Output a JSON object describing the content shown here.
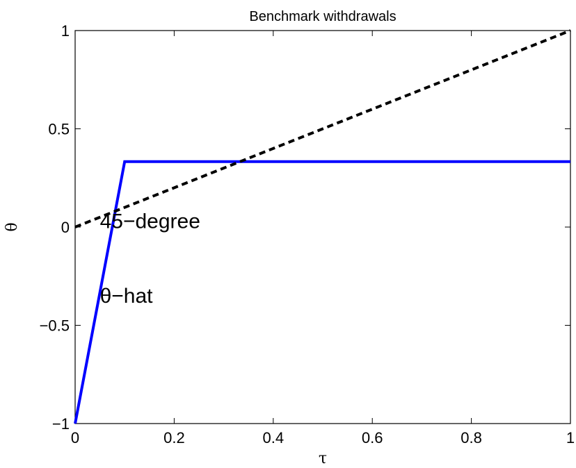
{
  "chart_data": {
    "type": "line",
    "title": "Benchmark withdrawals",
    "xlabel": "τ",
    "ylabel": "θ",
    "xlim": [
      0,
      1
    ],
    "ylim": [
      -1,
      1
    ],
    "x_ticks": [
      0,
      0.2,
      0.4,
      0.6,
      0.8,
      1
    ],
    "x_tick_labels": [
      "0",
      "0.2",
      "0.4",
      "0.6",
      "0.8",
      "1"
    ],
    "y_ticks": [
      -1,
      -0.5,
      0,
      0.5,
      1
    ],
    "y_tick_labels": [
      "−1",
      "−0.5",
      "0",
      "0.5",
      "1"
    ],
    "grid": false,
    "legend": "none",
    "series": [
      {
        "key": "theta_hat",
        "color": "#0000ff",
        "style": "solid",
        "x": [
          0,
          0.1,
          1
        ],
        "y": [
          -1,
          0.333,
          0.333
        ]
      },
      {
        "key": "forty_five",
        "color": "#000000",
        "style": "dashed",
        "x": [
          0,
          1
        ],
        "y": [
          0,
          1
        ]
      }
    ],
    "annotations": [
      {
        "text": "45−degree",
        "x": 0.05,
        "y": 0.03
      },
      {
        "text": "θ−hat",
        "x": 0.05,
        "y": -0.35
      }
    ]
  }
}
